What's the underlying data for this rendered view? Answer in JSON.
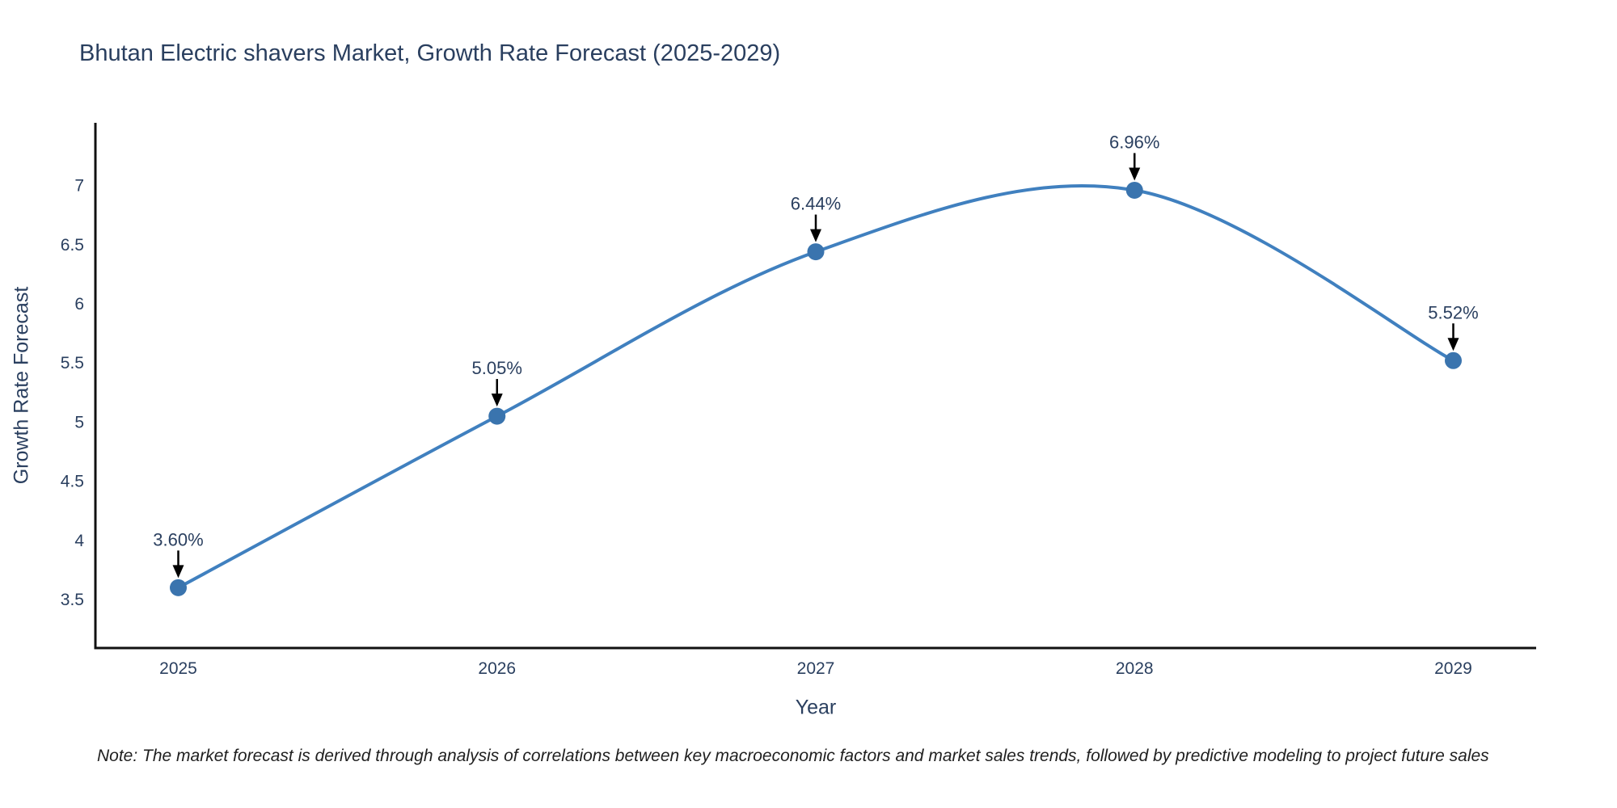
{
  "chart": {
    "title": "Bhutan Electric shavers Market, Growth Rate Forecast (2025-2029)",
    "xlabel": "Year",
    "ylabel": "Growth Rate Forecast",
    "note": "Note: The market forecast is derived through analysis of correlations between key macroeconomic factors and market sales trends, followed by predictive modeling to project future sales"
  },
  "chart_data": {
    "type": "line",
    "title": "Bhutan Electric shavers Market, Growth Rate Forecast (2025-2029)",
    "xlabel": "Year",
    "ylabel": "Growth Rate Forecast",
    "x": [
      2025,
      2026,
      2027,
      2028,
      2029
    ],
    "y": [
      3.6,
      5.05,
      6.44,
      6.96,
      5.52
    ],
    "point_labels": [
      "3.60%",
      "5.05%",
      "6.44%",
      "6.96%",
      "5.52%"
    ],
    "xticks": [
      2025,
      2026,
      2027,
      2028,
      2029
    ],
    "yticks": [
      3.5,
      4,
      4.5,
      5,
      5.5,
      6,
      6.5,
      7
    ],
    "xlim": [
      2024.74,
      2029.26
    ],
    "ylim": [
      3.09,
      7.53
    ],
    "grid": false,
    "legend": "none",
    "line_shape": "spline",
    "colors": {
      "line": "#4080bf",
      "marker": "#3a74ae",
      "axis": "#111111",
      "text": "#2a3f5f",
      "arrow": "#000000"
    }
  }
}
